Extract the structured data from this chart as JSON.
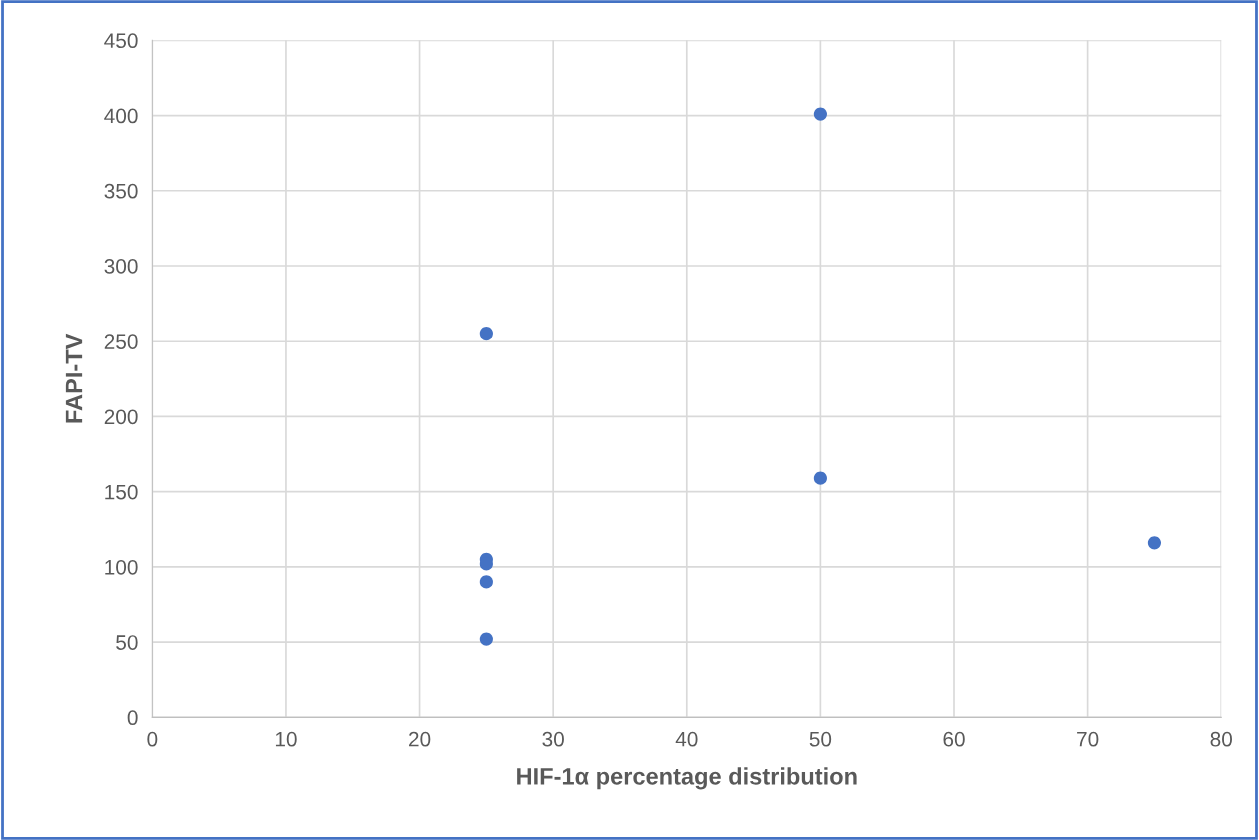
{
  "chart_data": {
    "type": "scatter",
    "xlabel": "HIF-1α percentage distribution",
    "ylabel": "FAPI-TV",
    "series": [
      {
        "color": "#4472c4",
        "x": [
          25,
          50,
          50,
          75,
          25,
          25,
          25,
          25
        ],
        "values": [
          255,
          401,
          159,
          116,
          105,
          102,
          90,
          52
        ]
      }
    ],
    "xlim": [
      0,
      80
    ],
    "xticks": [
      0,
      10,
      20,
      30,
      40,
      50,
      60,
      70,
      80
    ],
    "ylim": [
      0,
      450
    ],
    "yticks": [
      0,
      50,
      100,
      150,
      200,
      250,
      300,
      350,
      400,
      450
    ],
    "grid": true,
    "marker": "circle"
  }
}
